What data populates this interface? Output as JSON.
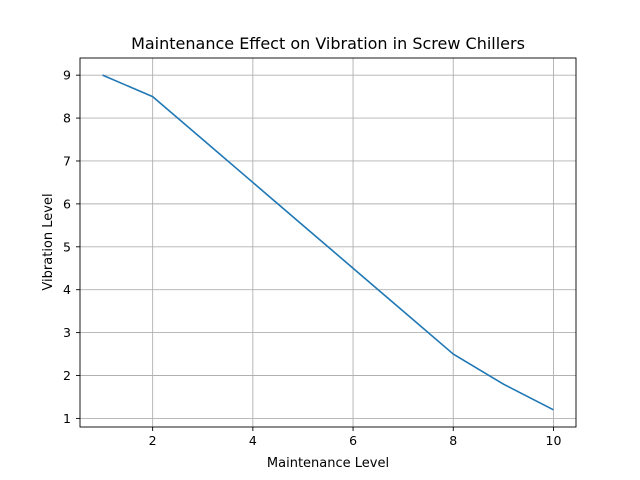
{
  "chart_data": {
    "type": "line",
    "title": "Maintenance Effect on Vibration in Screw Chillers",
    "xlabel": "Maintenance Level",
    "ylabel": "Vibration Level",
    "xlim": [
      0.55,
      10.45
    ],
    "ylim": [
      0.8,
      9.4
    ],
    "xticks": [
      2,
      4,
      6,
      8,
      10
    ],
    "yticks": [
      1,
      2,
      3,
      4,
      5,
      6,
      7,
      8,
      9
    ],
    "grid": true,
    "legend": "none",
    "series": [
      {
        "color": "#1f77b4",
        "x": [
          1,
          2,
          3,
          4,
          5,
          6,
          7,
          8,
          9,
          10
        ],
        "y": [
          9.0,
          8.5,
          7.5,
          6.5,
          5.5,
          4.5,
          3.5,
          2.5,
          1.8,
          1.2
        ]
      }
    ]
  }
}
